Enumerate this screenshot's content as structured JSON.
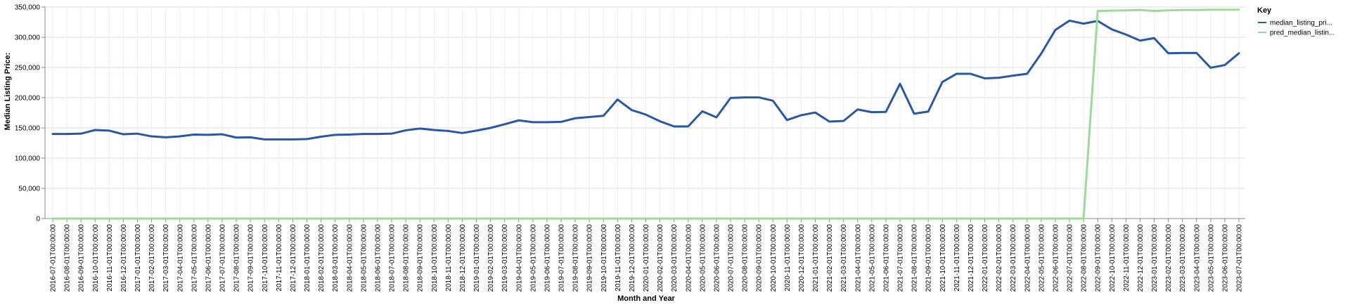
{
  "chart_data": {
    "type": "line",
    "xlabel": "Month and Year",
    "ylabel": "Median Listing Price:",
    "ylim": [
      0,
      350000
    ],
    "yticks": [
      "0",
      "50,000",
      "100,000",
      "150,000",
      "200,000",
      "250,000",
      "300,000",
      "350,000"
    ],
    "grid": true,
    "legend": {
      "title": "Key",
      "placement": "top-right"
    },
    "x": [
      "2016-07-01T00:00:00",
      "2016-08-01T00:00:00",
      "2016-09-01T00:00:00",
      "2016-10-01T00:00:00",
      "2016-11-01T00:00:00",
      "2016-12-01T00:00:00",
      "2017-01-01T00:00:00",
      "2017-02-01T00:00:00",
      "2017-03-01T00:00:00",
      "2017-04-01T00:00:00",
      "2017-05-01T00:00:00",
      "2017-06-01T00:00:00",
      "2017-07-01T00:00:00",
      "2017-08-01T00:00:00",
      "2017-09-01T00:00:00",
      "2017-10-01T00:00:00",
      "2017-11-01T00:00:00",
      "2017-12-01T00:00:00",
      "2018-01-01T00:00:00",
      "2018-02-01T00:00:00",
      "2018-03-01T00:00:00",
      "2018-04-01T00:00:00",
      "2018-05-01T00:00:00",
      "2018-06-01T00:00:00",
      "2018-07-01T00:00:00",
      "2018-08-01T00:00:00",
      "2018-09-01T00:00:00",
      "2018-10-01T00:00:00",
      "2018-11-01T00:00:00",
      "2018-12-01T00:00:00",
      "2019-01-01T00:00:00",
      "2019-02-01T00:00:00",
      "2019-03-01T00:00:00",
      "2019-04-01T00:00:00",
      "2019-05-01T00:00:00",
      "2019-06-01T00:00:00",
      "2019-07-01T00:00:00",
      "2019-08-01T00:00:00",
      "2019-09-01T00:00:00",
      "2019-10-01T00:00:00",
      "2019-11-01T00:00:00",
      "2019-12-01T00:00:00",
      "2020-01-01T00:00:00",
      "2020-02-01T00:00:00",
      "2020-03-01T00:00:00",
      "2020-04-01T00:00:00",
      "2020-05-01T00:00:00",
      "2020-06-01T00:00:00",
      "2020-07-01T00:00:00",
      "2020-08-01T00:00:00",
      "2020-09-01T00:00:00",
      "2020-10-01T00:00:00",
      "2020-11-01T00:00:00",
      "2020-12-01T00:00:00",
      "2021-01-01T00:00:00",
      "2021-02-01T00:00:00",
      "2021-03-01T00:00:00",
      "2021-04-01T00:00:00",
      "2021-05-01T00:00:00",
      "2021-06-01T00:00:00",
      "2021-07-01T00:00:00",
      "2021-08-01T00:00:00",
      "2021-09-01T00:00:00",
      "2021-10-01T00:00:00",
      "2021-11-01T00:00:00",
      "2021-12-01T00:00:00",
      "2022-01-01T00:00:00",
      "2022-02-01T00:00:00",
      "2022-03-01T00:00:00",
      "2022-04-01T00:00:00",
      "2022-05-01T00:00:00",
      "2022-06-01T00:00:00",
      "2022-07-01T00:00:00",
      "2022-08-01T00:00:00",
      "2022-09-01T00:00:00",
      "2022-10-01T00:00:00",
      "2022-11-01T00:00:00",
      "2022-12-01T00:00:00",
      "2023-01-01T00:00:00",
      "2023-02-01T00:00:00",
      "2023-03-01T00:00:00",
      "2023-04-01T00:00:00",
      "2023-05-01T00:00:00",
      "2023-06-01T00:00:00",
      "2023-07-01T00:00:00"
    ],
    "series": [
      {
        "name": "median_listing_pri...",
        "color": "#2b58a0",
        "values": [
          140000,
          140000,
          140500,
          146500,
          145500,
          139500,
          140500,
          136000,
          134500,
          136000,
          139000,
          138500,
          139500,
          134000,
          134500,
          131000,
          131000,
          131000,
          131500,
          135500,
          138500,
          139000,
          140000,
          140000,
          140500,
          146000,
          149000,
          146500,
          145000,
          141500,
          145500,
          150000,
          156000,
          162500,
          159500,
          159500,
          160000,
          166000,
          168000,
          170000,
          197000,
          179500,
          172000,
          161000,
          152500,
          152500,
          177500,
          167500,
          199500,
          200500,
          200500,
          195000,
          163000,
          171000,
          175500,
          160500,
          161500,
          180500,
          176000,
          176500,
          223000,
          173500,
          177000,
          226000,
          239500,
          239500,
          232000,
          233000,
          236500,
          239500,
          273000,
          312000,
          327500,
          322500,
          327000,
          313000,
          304500,
          294500,
          298500,
          273500,
          274000,
          274000,
          249500,
          254000,
          273500
        ]
      },
      {
        "name": "pred_median_listin...",
        "color": "#9fd99a",
        "values": [
          0,
          0,
          0,
          0,
          0,
          0,
          0,
          0,
          0,
          0,
          0,
          0,
          0,
          0,
          0,
          0,
          0,
          0,
          0,
          0,
          0,
          0,
          0,
          0,
          0,
          0,
          0,
          0,
          0,
          0,
          0,
          0,
          0,
          0,
          0,
          0,
          0,
          0,
          0,
          0,
          0,
          0,
          0,
          0,
          0,
          0,
          0,
          0,
          0,
          0,
          0,
          0,
          0,
          0,
          0,
          0,
          0,
          0,
          0,
          0,
          0,
          0,
          0,
          0,
          0,
          0,
          0,
          0,
          0,
          0,
          0,
          0,
          0,
          0,
          343500,
          344000,
          344500,
          345000,
          343500,
          344500,
          345000,
          345000,
          345500,
          345500,
          345500
        ]
      }
    ]
  }
}
